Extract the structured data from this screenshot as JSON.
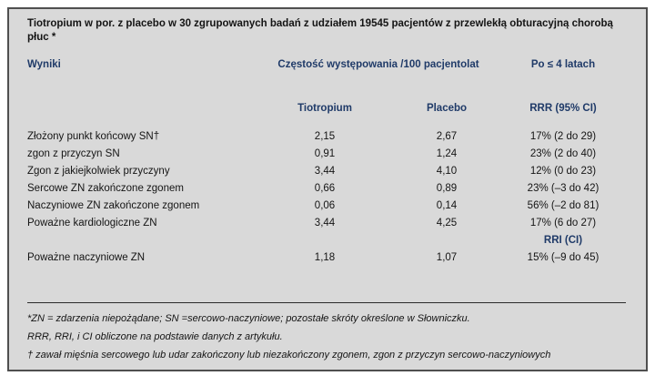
{
  "colors": {
    "header_navy": "#1f3a68",
    "panel_background": "#d9d9d9",
    "panel_border": "#4f4f4f",
    "body_text": "#141414"
  },
  "table": {
    "title": "Tiotropium w por. z placebo w 30 zgrupowanych badań z udziałem 19545 pacjentów z przewlekłą obturacyjną chorobą płuc *",
    "columns": {
      "results": "Wyniki",
      "frequency": "Częstość występowania /100 pacjentolat",
      "after": "Po ≤ 4 latach"
    },
    "subcolumns": {
      "tiotropium": "Tiotropium",
      "placebo": "Placebo",
      "rrr": "RRR (95% CI)"
    },
    "rows": [
      {
        "label": "Złożony punkt końcowy SN†",
        "tiotropium": "2,15",
        "placebo": "2,67",
        "value": "17% (2 do 29)"
      },
      {
        "label": "zgon z przyczyn SN",
        "tiotropium": "0,91",
        "placebo": "1,24",
        "value": "23% (2 do 40)"
      },
      {
        "label": "Zgon z jakiejkolwiek przyczyny",
        "tiotropium": "3,44",
        "placebo": "4,10",
        "value": "12% (0 do 23)"
      },
      {
        "label": "Sercowe ZN zakończone zgonem",
        "tiotropium": "0,66",
        "placebo": "0,89",
        "value": "23% (–3 do 42)"
      },
      {
        "label": "Naczyniowe ZN zakończone zgonem",
        "tiotropium": "0,06",
        "placebo": "0,14",
        "value": "56% (–2 do 81)"
      },
      {
        "label": "Poważne kardiologiczne ZN",
        "tiotropium": "3,44",
        "placebo": "4,25",
        "value": "17% (6 do 27)"
      }
    ],
    "rri_header": "RRI (CI)",
    "rri_row": {
      "label": "Poważne naczyniowe ZN",
      "tiotropium": "1,18",
      "placebo": "1,07",
      "value": "15% (–9 do 45)"
    },
    "footnotes": [
      "*ZN = zdarzenia niepożądane; SN =sercowo-naczyniowe; pozostałe skróty określone w Słowniczku.",
      "RRR, RRI, i CI obliczone na podstawie danych z artykułu.",
      "† zawał mięśnia sercowego lub udar zakończony lub niezakończony zgonem, zgon z przyczyn sercowo-naczyniowych"
    ]
  }
}
